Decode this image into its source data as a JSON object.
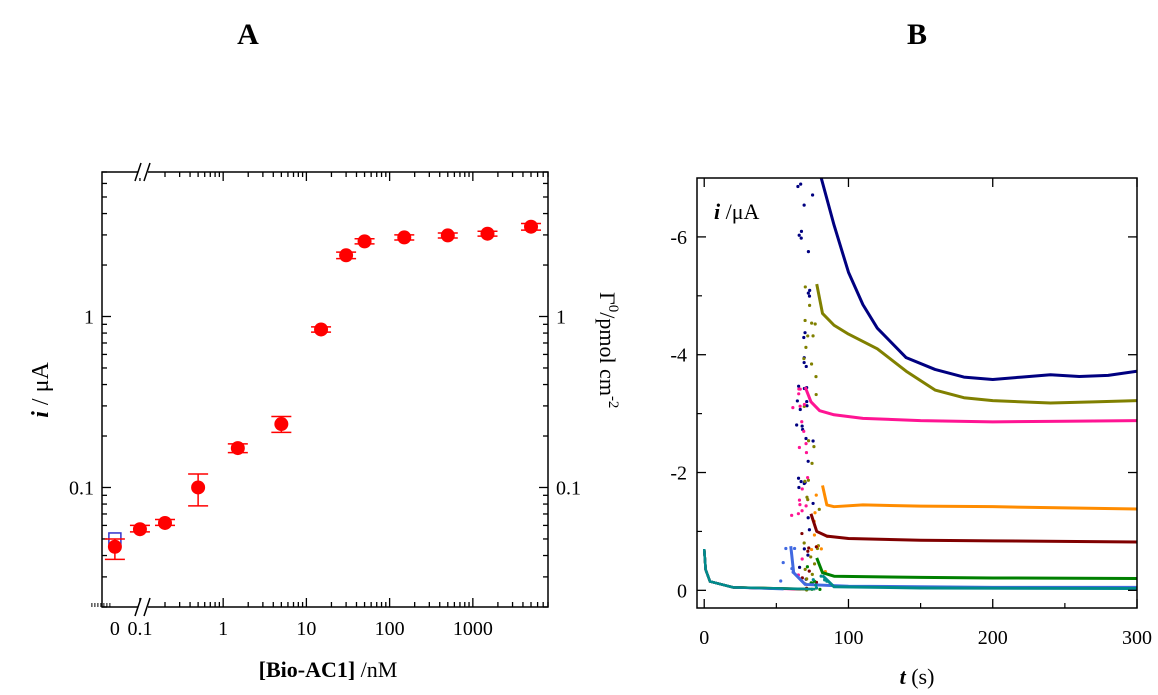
{
  "panels": [
    {
      "letter": "A"
    },
    {
      "letter": "B"
    }
  ],
  "chart_data": [
    {
      "type": "scatter",
      "panel": "A",
      "x_scale": "log",
      "y_scale": "log",
      "xlim": [
        0.035,
        8000
      ],
      "ylim": [
        0.02,
        7
      ],
      "x_ticks": [
        {
          "label": "0",
          "value": 0.05
        },
        {
          "label": "0.1",
          "value": 0.1
        },
        {
          "label": "1",
          "value": 1
        },
        {
          "label": "10",
          "value": 10
        },
        {
          "label": "100",
          "value": 100
        },
        {
          "label": "1000",
          "value": 1000
        }
      ],
      "y_ticks": [
        {
          "label": "0.1",
          "value": 0.1
        },
        {
          "label": "1",
          "value": 1
        }
      ],
      "y2_ticks": [
        {
          "label": "0.1",
          "value": 0.1
        },
        {
          "label": "1",
          "value": 1
        }
      ],
      "xlabel_bold": "[Bio-AC1]",
      "xlabel_rest": " /nM",
      "ylabel_italic": "i",
      "ylabel_rest": " / μA",
      "y2label_main": "Γ",
      "y2label_sup": "0",
      "y2label_rest": "/pmol cm",
      "y2label_sup2": "-2",
      "axis_breaks": [
        "x",
        "top"
      ],
      "series": [
        {
          "marker": "filled-circle",
          "color": "#ff0000",
          "points": [
            {
              "x": 0.05,
              "y": 0.045,
              "err_low": 0.038,
              "err_high": 0.05
            },
            {
              "x": 0.1,
              "y": 0.057,
              "err_low": 0.055,
              "err_high": 0.06
            },
            {
              "x": 0.2,
              "y": 0.062,
              "err_low": 0.06,
              "err_high": 0.065
            },
            {
              "x": 0.5,
              "y": 0.1,
              "err_low": 0.078,
              "err_high": 0.12
            },
            {
              "x": 1.5,
              "y": 0.17,
              "err_low": 0.16,
              "err_high": 0.18
            },
            {
              "x": 5,
              "y": 0.235,
              "err_low": 0.21,
              "err_high": 0.26
            },
            {
              "x": 15,
              "y": 0.84,
              "err_low": 0.81,
              "err_high": 0.87
            },
            {
              "x": 30,
              "y": 2.28,
              "err_low": 2.18,
              "err_high": 2.38
            },
            {
              "x": 50,
              "y": 2.75,
              "err_low": 2.66,
              "err_high": 2.85
            },
            {
              "x": 150,
              "y": 2.9,
              "err_low": 2.8,
              "err_high": 3.0
            },
            {
              "x": 500,
              "y": 2.98,
              "err_low": 2.88,
              "err_high": 3.08
            },
            {
              "x": 1500,
              "y": 3.05,
              "err_low": 2.95,
              "err_high": 3.15
            },
            {
              "x": 5000,
              "y": 3.35,
              "err_low": 3.2,
              "err_high": 3.5
            }
          ]
        },
        {
          "marker": "open-square",
          "color": "#3333cc",
          "points": [
            {
              "x": 0.05,
              "y": 0.05
            }
          ]
        }
      ]
    },
    {
      "type": "line",
      "panel": "B",
      "xlim": [
        -5,
        300
      ],
      "ylim": [
        0.3,
        -7
      ],
      "y_inverted": true,
      "x_ticks": [
        "0",
        "100",
        "200",
        "300"
      ],
      "x_tick_values": [
        0,
        100,
        200,
        300
      ],
      "y_ticks": [
        "0",
        "-2",
        "-4",
        "-6"
      ],
      "y_tick_values": [
        0,
        -2,
        -4,
        -6
      ],
      "xlabel_italic": "t",
      "xlabel_rest": " (s)",
      "ylabel_italic": "i",
      "ylabel_rest": " /μA",
      "series": [
        {
          "color": "#000080",
          "spike_t": 70,
          "start_t": 72,
          "peak": -7.8,
          "final": -3.72,
          "points": [
            [
              72,
              -7.8
            ],
            [
              80,
              -7.1
            ],
            [
              90,
              -6.2
            ],
            [
              100,
              -5.4
            ],
            [
              110,
              -4.85
            ],
            [
              120,
              -4.45
            ],
            [
              140,
              -3.95
            ],
            [
              160,
              -3.75
            ],
            [
              180,
              -3.62
            ],
            [
              200,
              -3.58
            ],
            [
              220,
              -3.62
            ],
            [
              240,
              -3.66
            ],
            [
              260,
              -3.63
            ],
            [
              280,
              -3.65
            ],
            [
              300,
              -3.72
            ]
          ]
        },
        {
          "color": "#808000",
          "spike_t": 75,
          "start_t": 78,
          "peak": -5.2,
          "final": -3.22,
          "points": [
            [
              78,
              -5.2
            ],
            [
              82,
              -4.7
            ],
            [
              90,
              -4.5
            ],
            [
              100,
              -4.35
            ],
            [
              120,
              -4.1
            ],
            [
              140,
              -3.72
            ],
            [
              160,
              -3.4
            ],
            [
              180,
              -3.27
            ],
            [
              200,
              -3.22
            ],
            [
              240,
              -3.18
            ],
            [
              270,
              -3.2
            ],
            [
              300,
              -3.22
            ]
          ]
        },
        {
          "color": "#ff1493",
          "spike_t": 66,
          "start_t": 70,
          "peak": -3.45,
          "final": -2.88,
          "points": [
            [
              70,
              -3.45
            ],
            [
              74,
              -3.2
            ],
            [
              80,
              -3.05
            ],
            [
              90,
              -2.98
            ],
            [
              110,
              -2.92
            ],
            [
              150,
              -2.88
            ],
            [
              200,
              -2.86
            ],
            [
              250,
              -2.87
            ],
            [
              300,
              -2.88
            ]
          ]
        },
        {
          "color": "#ff8c00",
          "spike_t": 80,
          "start_t": 82,
          "peak": -1.78,
          "final": -1.38,
          "points": [
            [
              82,
              -1.78
            ],
            [
              85,
              -1.45
            ],
            [
              90,
              -1.42
            ],
            [
              110,
              -1.45
            ],
            [
              150,
              -1.43
            ],
            [
              200,
              -1.42
            ],
            [
              250,
              -1.4
            ],
            [
              300,
              -1.38
            ]
          ]
        },
        {
          "color": "#800000",
          "spike_t": 73,
          "start_t": 74,
          "peak": -1.3,
          "final": -0.82,
          "points": [
            [
              74,
              -1.3
            ],
            [
              78,
              -1.0
            ],
            [
              85,
              -0.92
            ],
            [
              100,
              -0.88
            ],
            [
              150,
              -0.85
            ],
            [
              200,
              -0.84
            ],
            [
              300,
              -0.82
            ]
          ]
        },
        {
          "color": "#008000",
          "spike_t": 76,
          "start_t": 78,
          "peak": -0.55,
          "final": -0.2,
          "points": [
            [
              78,
              -0.55
            ],
            [
              82,
              -0.3
            ],
            [
              90,
              -0.24
            ],
            [
              150,
              -0.22
            ],
            [
              200,
              -0.21
            ],
            [
              300,
              -0.2
            ]
          ]
        },
        {
          "color": "#4169e1",
          "spike_t": 58,
          "start_t": 60,
          "peak": -0.75,
          "final": -0.05,
          "points": [
            [
              60,
              -0.75
            ],
            [
              62,
              -0.3
            ],
            [
              70,
              -0.1
            ],
            [
              100,
              -0.07
            ],
            [
              200,
              -0.05
            ],
            [
              300,
              -0.05
            ]
          ]
        },
        {
          "color": "#008b8b",
          "spike_t": 80,
          "start_t": 82,
          "peak": -0.25,
          "final": -0.03,
          "points": [
            [
              82,
              -0.25
            ],
            [
              90,
              -0.06
            ],
            [
              150,
              -0.04
            ],
            [
              300,
              -0.03
            ]
          ]
        }
      ]
    }
  ]
}
